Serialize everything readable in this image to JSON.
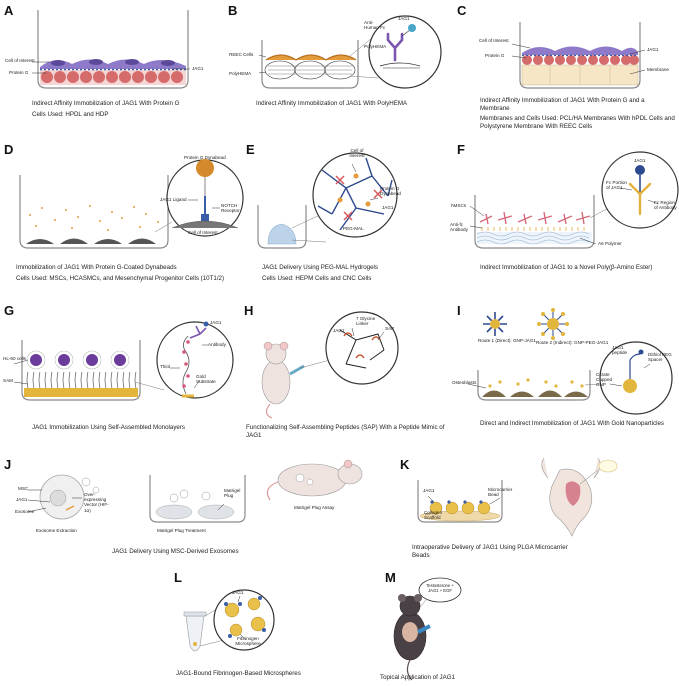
{
  "panels": {
    "A": {
      "letter": "A",
      "title": "Indirect Affinity Immobilization of JAG1 With Protein G",
      "subtitle": "Cells Used: HPDL and HDP",
      "labels": {
        "cell": "Cell of Interest",
        "protein_g": "Protein G",
        "jag1": "JAG1"
      }
    },
    "B": {
      "letter": "B",
      "title": "Indirect Affinity Immobilization of JAG1 With PolyHEMA",
      "subtitle": "",
      "labels": {
        "reec": "REEC Cells",
        "polyhema_left": "PolyHEMA",
        "anti_fc": "Anti-Human Fc",
        "jag1": "JAG1",
        "polyhema": "PolyHEMA"
      }
    },
    "C": {
      "letter": "C",
      "title": "Indirect Affinity Immobilization of JAG1 With Protein G and a Membrane",
      "subtitle": "Membranes and Cells Used: PCL/HA Membranes With hPDL Cells and Polystyrene Membrane With REEC Cells",
      "labels": {
        "cell": "Cell of Interest",
        "protein_g": "Protein G",
        "jag1": "JAG1",
        "membrane": "Membrane"
      }
    },
    "D": {
      "letter": "D",
      "title": "Immobilization of JAG1 With Protein G-Coated Dynabeads",
      "subtitle": "Cells Used: MSCs, HCASMCs, and Mesenchymal Progenitor Cells (10T1/2)",
      "labels": {
        "dynabead": "Protein G Dynabead",
        "ligand": "JAG1 Ligand",
        "notch": "NOTCH Receptor",
        "cell": "Cell of Interest"
      }
    },
    "E": {
      "letter": "E",
      "title": "JAG1 Delivery Using PEG-MAL Hydrogels",
      "subtitle": "Cells Used: HEPM Cells and CNC Cells",
      "labels": {
        "cell": "Cell of Interest",
        "dynabead": "Protein G Dynabead",
        "jag1": "JAG1",
        "pegmal": "PEG-MAL"
      }
    },
    "F": {
      "letter": "F",
      "title": "Indirect Immobilization of JAG1 to a Novel Poly(β-Amino Ester)",
      "subtitle": "",
      "labels": {
        "hmsc": "hMSCs",
        "antifc": "Anti-fc Antibody",
        "a6": "A6 Polymer",
        "jag1": "JAG1",
        "fc_portion": "Fc Portion of JAG1",
        "fc_region": "Fc Region of Antibody"
      }
    },
    "G": {
      "letter": "G",
      "title": "JAG1 Immobilization Using Self-Assembled Monolayers",
      "subtitle": "",
      "labels": {
        "hl60": "HL-60 cells",
        "sam": "SAM",
        "jag1": "JAG1",
        "antibody": "Antibody",
        "thiol": "Thiol",
        "gold": "Gold Substrate"
      }
    },
    "H": {
      "letter": "H",
      "title": "Functionalizing Self-Assembling Peptides (SAP) With a Peptide Mimic of JAG1",
      "subtitle": "",
      "labels": {
        "linker": "7 Glycine Linker",
        "jag1": "JAG1",
        "sap": "SAP"
      }
    },
    "I": {
      "letter": "I",
      "title": "Direct and Indirect Immobilization of JAG1 With Gold Nanoparticles",
      "subtitle": "",
      "labels": {
        "route1": "Route 1 (Direct): GNP-JAG1",
        "route2": "Route 2 (Indirect): GNP-PEG-JAG1",
        "osteoblasts": "Osteoblasts",
        "jag1_peptide": "JAG1 peptide",
        "dithiol": "Dithiol PEG Spacer",
        "citrate": "Citrate Capped GNP"
      }
    },
    "J": {
      "letter": "J",
      "title": "JAG1 Delivery Using MSC-Derived Exosomes",
      "subtitle": "",
      "labels": {
        "msc": "MSC",
        "jag1": "JAG1",
        "exosome": "Exosome",
        "vector": "Over-expressing Vector (HIF-1α)",
        "extraction": "Exosome Extraction",
        "plug": "Matrigel Plug",
        "treatment": "Matrigel Plug Treatment",
        "assay": "Matrigel Plug Assay"
      }
    },
    "K": {
      "letter": "K",
      "title": "Intraoperative Delivery of JAG1 Using PLGA Microcarrier Beads",
      "subtitle": "",
      "labels": {
        "jag1": "JAG1",
        "collagen": "Collagen Scaffold",
        "bead": "Microcarrier Bead"
      }
    },
    "L": {
      "letter": "L",
      "title": "JAG1-Bound Fibrinogen-Based Microspheres",
      "subtitle": "",
      "labels": {
        "jag1": "JAG1",
        "micro": "Fibrinogen Microsphere"
      }
    },
    "M": {
      "letter": "M",
      "title": "Topical Application of JAG1",
      "subtitle": "",
      "labels": {
        "testo": "Testosterone + JAG1 + EGF"
      }
    }
  },
  "colors": {
    "cell": "#8f7ac9",
    "protein_g": "#d66b6b",
    "orange": "#e39a3a",
    "blue": "#3b5ca8",
    "gold": "#e2b63c",
    "well": "#8a8a8a"
  }
}
